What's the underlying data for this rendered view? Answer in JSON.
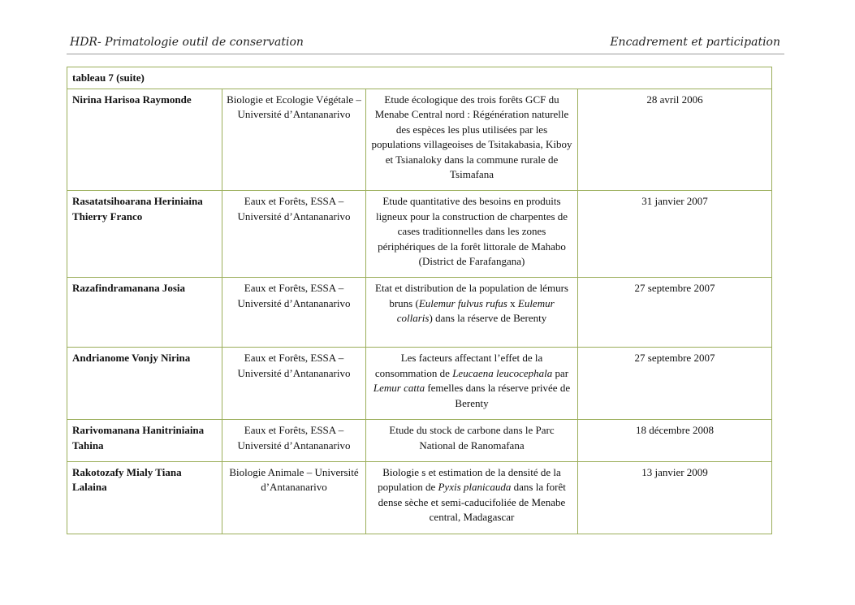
{
  "header": {
    "left": "HDR- Primatologie outil de conservation",
    "right": "Encadrement et participation"
  },
  "table": {
    "caption": "tableau 7 (suite)",
    "rows": [
      {
        "name": "Nirina Harisoa Raymonde",
        "institution": "Biologie et Ecologie Végétale – Université d’Antananarivo",
        "title": [
          {
            "text": "Etude écologique des trois forêts GCF du Menabe Central nord : Régénération naturelle des espèces les plus utilisées par les populations villageoises de Tsitakabasia, Kiboy et Tsianaloky dans la commune rurale de Tsimafana",
            "italic": false
          }
        ],
        "date": "28 avril 2006"
      },
      {
        "name": "Rasatatsihoarana Heriniaina Thierry Franco",
        "institution": "Eaux et Forêts, ESSA – Université d’Antananarivo",
        "title": [
          {
            "text": "Etude quantitative des besoins en produits ligneux pour la construction de charpentes de cases traditionnelles dans les zones périphériques de la forêt littorale de Mahabo (District de Farafangana)",
            "italic": false
          }
        ],
        "date": "31 janvier 2007"
      },
      {
        "name": "Razafindramanana Josia",
        "institution": "Eaux et Forêts, ESSA – Université d’Antananarivo",
        "title": [
          {
            "text": "Etat et distribution de la population de lémurs bruns (",
            "italic": false
          },
          {
            "text": "Eulemur fulvus rufus",
            "italic": true
          },
          {
            "text": " x ",
            "italic": false
          },
          {
            "text": "Eulemur collaris",
            "italic": true
          },
          {
            "text": ") dans la réserve de Berenty",
            "italic": false
          }
        ],
        "date": "27 septembre 2007"
      },
      {
        "name": "Andrianome Vonjy Nirina",
        "institution": "Eaux et Forêts, ESSA – Université d’Antananarivo",
        "title": [
          {
            "text": "Les facteurs affectant l’effet de la consommation de ",
            "italic": false
          },
          {
            "text": "Leucaena leucocephala",
            "italic": true
          },
          {
            "text": " par ",
            "italic": false
          },
          {
            "text": "Lemur catta",
            "italic": true
          },
          {
            "text": " femelles dans la réserve privée de Berenty",
            "italic": false
          }
        ],
        "date": "27 septembre 2007"
      },
      {
        "name": "Rarivomanana Hanitriniaina Tahina",
        "institution": "Eaux et Forêts, ESSA – Université d’Antananarivo",
        "title": [
          {
            "text": "Etude du stock de carbone dans le Parc National de Ranomafana",
            "italic": false
          }
        ],
        "date": "18 décembre 2008"
      },
      {
        "name": "Rakotozafy Mialy Tiana Lalaina",
        "institution": "Biologie Animale – Université d’Antananarivo",
        "title": [
          {
            "text": "Biologie s et estimation de la densité de la population de ",
            "italic": false
          },
          {
            "text": "Pyxis planicauda",
            "italic": true
          },
          {
            "text": " dans la forêt dense sèche et semi-caducifoliée de Menabe central, Madagascar",
            "italic": false
          }
        ],
        "date": "13 janvier 2009"
      }
    ]
  },
  "colors": {
    "border": "#9bae5a"
  }
}
